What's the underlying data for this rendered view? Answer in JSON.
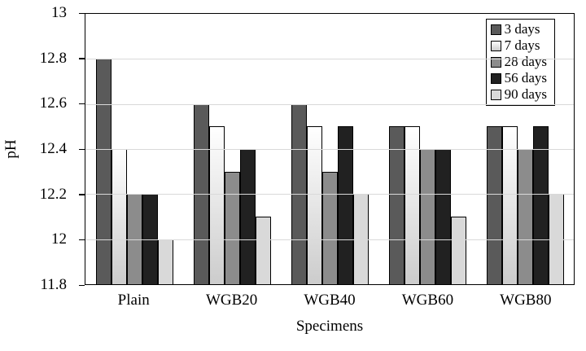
{
  "chart_data": {
    "type": "bar",
    "title": "",
    "xlabel": "Specimens",
    "ylabel": "pH",
    "ylim": [
      11.8,
      13
    ],
    "ytick_labels": [
      "13",
      "12.8",
      "12.6",
      "12.4",
      "12.2",
      "12",
      "11.8"
    ],
    "ytick_values": [
      13,
      12.8,
      12.6,
      12.4,
      12.2,
      12,
      11.8
    ],
    "categories": [
      "Plain",
      "WGB20",
      "WGB40",
      "WGB60",
      "WGB80"
    ],
    "series": [
      {
        "name": "3 days",
        "color": "#5a5a5a",
        "values": [
          12.8,
          12.6,
          12.6,
          12.5,
          12.5
        ]
      },
      {
        "name": "7 days",
        "color": "#f2f2f2",
        "gradient": [
          "#ffffff",
          "#cccccc"
        ],
        "values": [
          12.4,
          12.5,
          12.5,
          12.5,
          12.5
        ]
      },
      {
        "name": "28 days",
        "color": "#8c8c8c",
        "values": [
          12.2,
          12.3,
          12.3,
          12.4,
          12.4
        ]
      },
      {
        "name": "56 days",
        "color": "#212121",
        "values": [
          12.2,
          12.4,
          12.5,
          12.4,
          12.5
        ]
      },
      {
        "name": "90 days",
        "color": "#d9d9d9",
        "values": [
          12.0,
          12.1,
          12.2,
          12.1,
          12.2
        ]
      }
    ],
    "legend_position": "top-right",
    "grid": true,
    "grid_color": "#d9d9d9",
    "bar_border_color": "#000000",
    "frame_color": "#000000"
  }
}
